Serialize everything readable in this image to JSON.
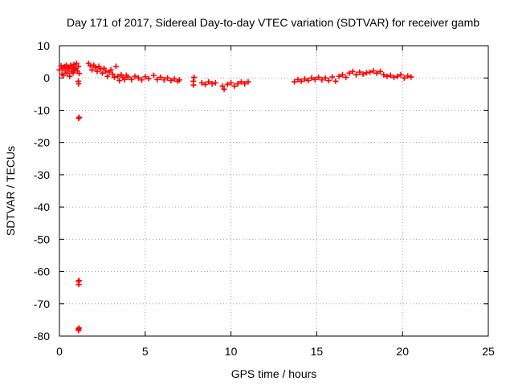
{
  "chart_data": {
    "type": "scatter",
    "title": "Day 171 of 2017, Sidereal Day-to-day VTEC variation (SDTVAR) for receiver gamb",
    "xlabel": "GPS time / hours",
    "ylabel": "SDTVAR / TECUs",
    "xlim": [
      0,
      25
    ],
    "ylim": [
      -80,
      10
    ],
    "xticks": [
      0,
      5,
      10,
      15,
      20,
      25
    ],
    "yticks": [
      10,
      0,
      -10,
      -20,
      -30,
      -40,
      -50,
      -60,
      -70,
      -80
    ],
    "grid": true,
    "marker": "+",
    "series": [
      {
        "name": "SDTVAR",
        "color": "#ff0000",
        "points": [
          [
            0.0,
            2.5
          ],
          [
            0.1,
            3.8
          ],
          [
            0.15,
            1.2
          ],
          [
            0.2,
            3.0
          ],
          [
            0.25,
            0.8
          ],
          [
            0.3,
            3.5
          ],
          [
            0.35,
            2.2
          ],
          [
            0.4,
            4.0
          ],
          [
            0.45,
            1.5
          ],
          [
            0.5,
            3.2
          ],
          [
            0.55,
            2.8
          ],
          [
            0.6,
            0.5
          ],
          [
            0.65,
            3.9
          ],
          [
            0.7,
            2.0
          ],
          [
            0.75,
            3.4
          ],
          [
            0.8,
            1.6
          ],
          [
            0.85,
            4.2
          ],
          [
            0.9,
            2.6
          ],
          [
            0.95,
            3.0
          ],
          [
            1.0,
            4.5
          ],
          [
            1.05,
            2.2
          ],
          [
            1.1,
            3.6
          ],
          [
            1.15,
            1.4
          ],
          [
            1.1,
            -1.0
          ],
          [
            1.12,
            -1.8
          ],
          [
            1.12,
            -12.5
          ],
          [
            1.15,
            -12.2
          ],
          [
            1.1,
            -63.0
          ],
          [
            1.13,
            -64.0
          ],
          [
            1.15,
            -62.8
          ],
          [
            1.1,
            -77.8
          ],
          [
            1.12,
            -78.3
          ],
          [
            1.15,
            -77.5
          ],
          [
            1.7,
            4.5
          ],
          [
            1.8,
            3.8
          ],
          [
            1.9,
            2.5
          ],
          [
            2.0,
            4.0
          ],
          [
            2.1,
            3.2
          ],
          [
            2.2,
            2.0
          ],
          [
            2.3,
            3.6
          ],
          [
            2.4,
            2.8
          ],
          [
            2.5,
            1.5
          ],
          [
            2.6,
            3.0
          ],
          [
            2.7,
            2.2
          ],
          [
            2.8,
            0.5
          ],
          [
            2.9,
            1.8
          ],
          [
            3.0,
            2.5
          ],
          [
            3.1,
            1.2
          ],
          [
            3.2,
            0.2
          ],
          [
            3.3,
            3.6
          ],
          [
            3.4,
            0.5
          ],
          [
            3.5,
            -0.8
          ],
          [
            3.6,
            1.0
          ],
          [
            3.7,
            0.2
          ],
          [
            3.8,
            -0.5
          ],
          [
            3.9,
            0.8
          ],
          [
            4.0,
            0.3
          ],
          [
            4.2,
            -0.5
          ],
          [
            4.4,
            0.5
          ],
          [
            4.6,
            0.0
          ],
          [
            4.8,
            -0.6
          ],
          [
            5.0,
            0.4
          ],
          [
            5.2,
            -0.2
          ],
          [
            5.5,
            0.8
          ],
          [
            5.7,
            -0.5
          ],
          [
            5.9,
            0.2
          ],
          [
            6.1,
            -0.6
          ],
          [
            6.3,
            0.0
          ],
          [
            6.5,
            -0.8
          ],
          [
            6.7,
            -0.3
          ],
          [
            6.9,
            -1.0
          ],
          [
            7.0,
            -0.6
          ],
          [
            7.8,
            -1.0
          ],
          [
            7.82,
            -2.2
          ],
          [
            7.85,
            0.2
          ],
          [
            8.3,
            -1.5
          ],
          [
            8.5,
            -2.0
          ],
          [
            8.7,
            -1.2
          ],
          [
            8.9,
            -1.8
          ],
          [
            9.1,
            -1.5
          ],
          [
            9.5,
            -2.5
          ],
          [
            9.6,
            -3.5
          ],
          [
            9.8,
            -2.0
          ],
          [
            10.0,
            -1.5
          ],
          [
            10.2,
            -2.5
          ],
          [
            10.4,
            -1.8
          ],
          [
            10.6,
            -1.2
          ],
          [
            10.8,
            -1.8
          ],
          [
            11.0,
            -1.2
          ],
          [
            13.7,
            -1.2
          ],
          [
            13.9,
            -0.5
          ],
          [
            14.1,
            -1.0
          ],
          [
            14.3,
            -0.3
          ],
          [
            14.5,
            -0.8
          ],
          [
            14.7,
            0.0
          ],
          [
            14.9,
            -0.5
          ],
          [
            15.1,
            0.2
          ],
          [
            15.3,
            -0.6
          ],
          [
            15.5,
            0.0
          ],
          [
            15.7,
            -0.8
          ],
          [
            15.9,
            0.3
          ],
          [
            16.1,
            -1.0
          ],
          [
            16.3,
            0.5
          ],
          [
            16.5,
            1.0
          ],
          [
            16.7,
            0.2
          ],
          [
            16.9,
            1.5
          ],
          [
            17.1,
            2.0
          ],
          [
            17.3,
            1.0
          ],
          [
            17.5,
            1.8
          ],
          [
            17.7,
            1.2
          ],
          [
            17.9,
            1.6
          ],
          [
            18.1,
            1.8
          ],
          [
            18.3,
            2.2
          ],
          [
            18.5,
            1.5
          ],
          [
            18.7,
            2.0
          ],
          [
            18.9,
            1.0
          ],
          [
            19.1,
            0.5
          ],
          [
            19.3,
            0.8
          ],
          [
            19.5,
            0.2
          ],
          [
            19.7,
            0.5
          ],
          [
            19.9,
            1.0
          ],
          [
            20.1,
            0.0
          ],
          [
            20.3,
            0.6
          ],
          [
            20.5,
            0.3
          ]
        ]
      }
    ]
  }
}
